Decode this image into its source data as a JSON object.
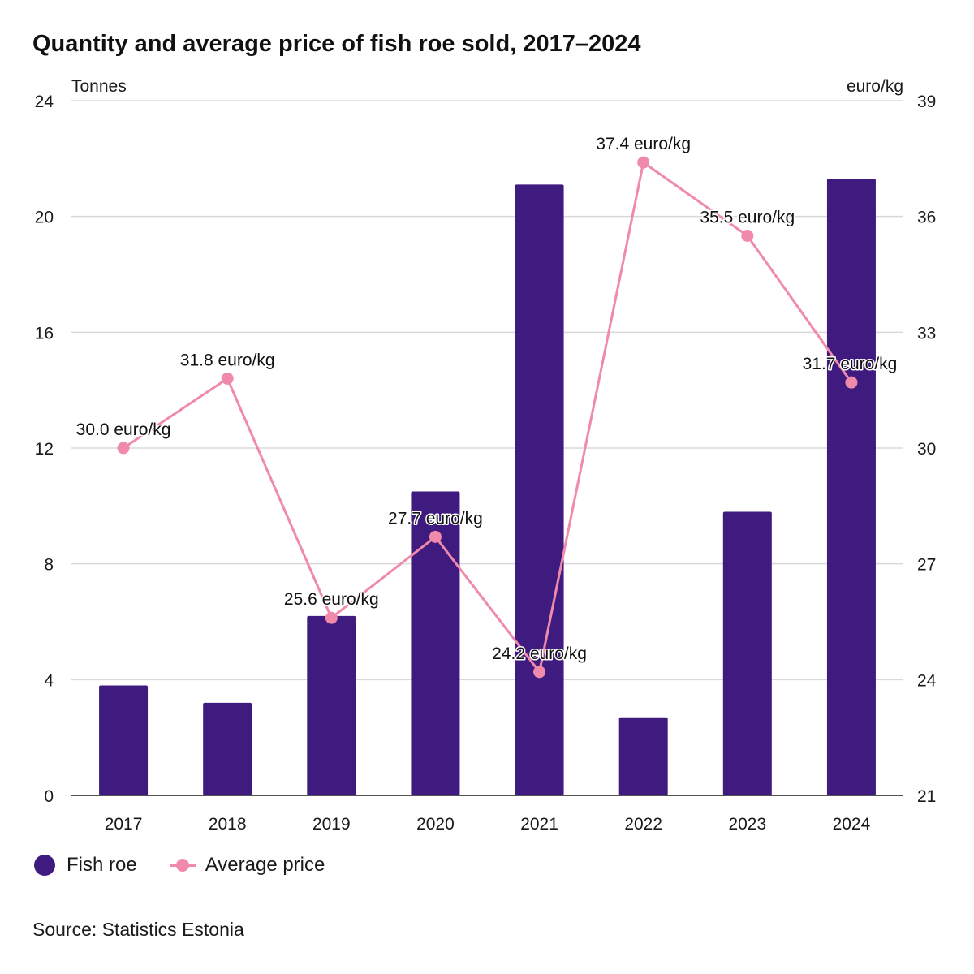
{
  "title": "Quantity and average price of fish roe sold, 2017–2024",
  "source": "Source: Statistics Estonia",
  "colors": {
    "bar": "#3f1a7f",
    "line": "#f08aaa",
    "grid": "#d9d9d9",
    "axis": "#1a1a1a"
  },
  "legend": [
    {
      "label": "Fish roe",
      "kind": "dot",
      "icon": "circle-marker-icon"
    },
    {
      "label": "Average price",
      "kind": "line",
      "icon": "line-marker-icon"
    }
  ],
  "chart_data": {
    "type": "bar",
    "title": "Quantity and average price of fish roe sold, 2017–2024",
    "categories": [
      "2017",
      "2018",
      "2019",
      "2020",
      "2021",
      "2022",
      "2023",
      "2024"
    ],
    "y_left": {
      "label": "Tonnes",
      "ylim": [
        0,
        24
      ],
      "ticks": [
        "0",
        "4",
        "8",
        "12",
        "16",
        "20",
        "24"
      ]
    },
    "y_right": {
      "label": "euro/kg",
      "ylim": [
        21,
        39
      ],
      "ticks": [
        "21",
        "24",
        "27",
        "30",
        "33",
        "36",
        "39"
      ]
    },
    "grid": true,
    "legend_position": "bottom-left",
    "series": [
      {
        "name": "Fish roe",
        "type": "bar",
        "axis": "left",
        "values": [
          3.8,
          3.2,
          6.2,
          10.5,
          21.1,
          2.7,
          9.8,
          21.3
        ]
      },
      {
        "name": "Average price",
        "type": "line",
        "axis": "right",
        "values": [
          30.0,
          31.8,
          25.6,
          27.7,
          24.2,
          37.4,
          35.5,
          31.7
        ],
        "labels": [
          "30.0 euro/kg",
          "31.8 euro/kg",
          "25.6 euro/kg",
          "27.7 euro/kg",
          "24.2 euro/kg",
          "37.4 euro/kg",
          "35.5 euro/kg",
          "31.7 euro/kg"
        ]
      }
    ]
  }
}
